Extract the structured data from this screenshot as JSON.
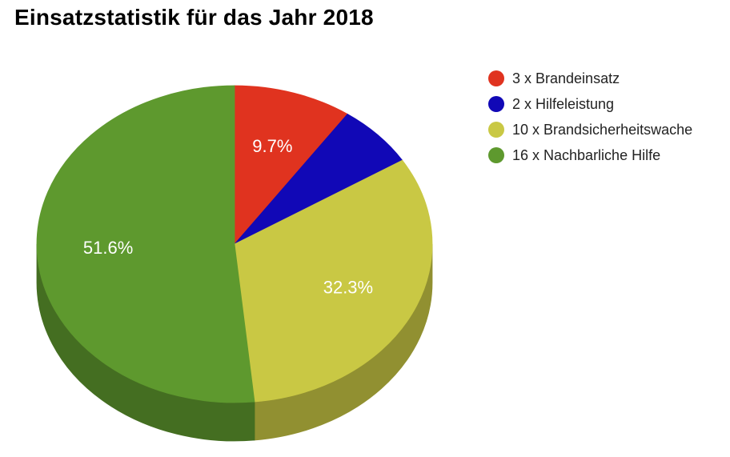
{
  "chart_data": {
    "type": "pie",
    "title": "Einsatzstatistik für das Jahr 2018",
    "series": [
      {
        "name": "3 x Brandeinsatz",
        "value": 3,
        "label": "9.7%",
        "color": "#e0331f"
      },
      {
        "name": "2 x Hilfeleistung",
        "value": 2,
        "label": "",
        "color": "#1108b6"
      },
      {
        "name": "10 x Brandsicherheitswache",
        "value": 10,
        "label": "32.3%",
        "color": "#c9c844"
      },
      {
        "name": "16 x Nachbarliche Hilfe",
        "value": 16,
        "label": "51.6%",
        "color": "#5e992e"
      }
    ],
    "style": "3d",
    "legend_position": "right"
  }
}
